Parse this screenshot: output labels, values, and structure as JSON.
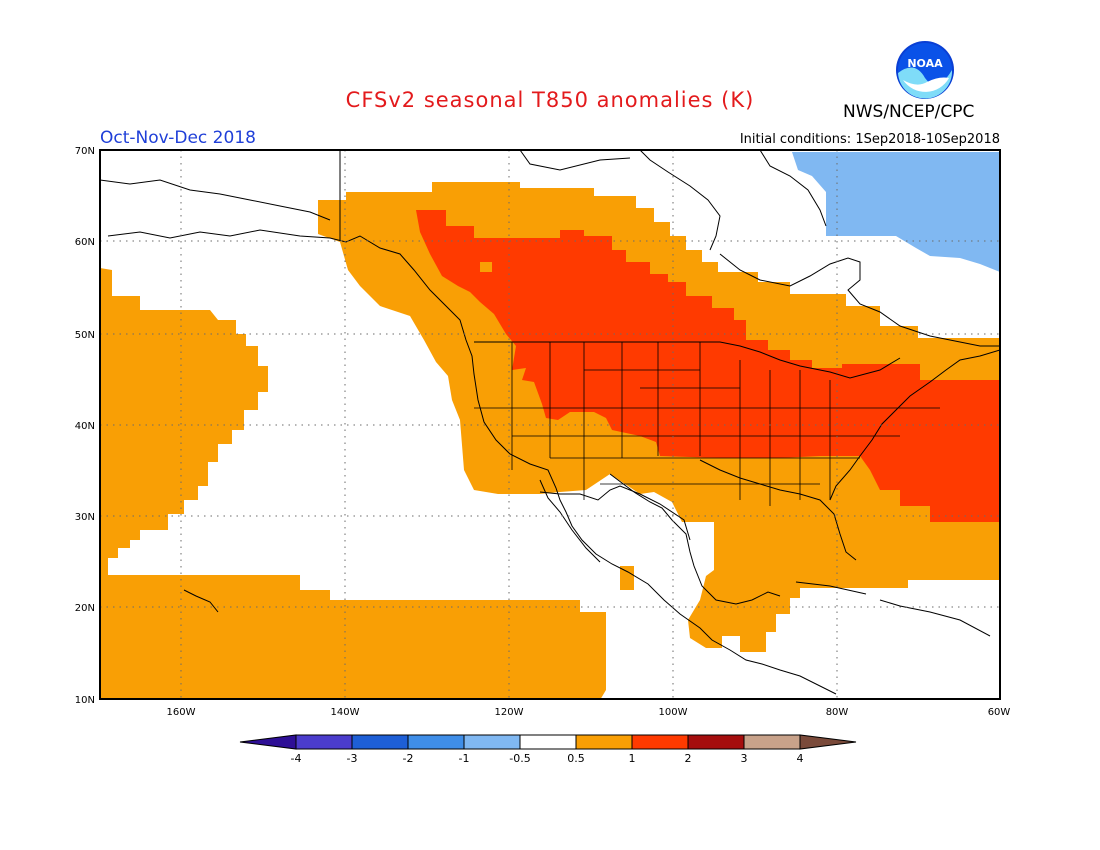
{
  "title": "CFSv2 seasonal T850 anomalies (K)",
  "organization": "NWS/NCEP/CPC",
  "logo_text": "NOAA",
  "period": "Oct-Nov-Dec 2018",
  "initial_conditions": "Initial conditions: 1Sep2018-10Sep2018",
  "map": {
    "lat_labels": [
      "70N",
      "60N",
      "50N",
      "40N",
      "30N",
      "20N",
      "10N"
    ],
    "lon_labels": [
      "160W",
      "140W",
      "120W",
      "100W",
      "80W",
      "60W"
    ],
    "gridlines": "dotted"
  },
  "colorbar": {
    "labels": [
      "-4",
      "-3",
      "-2",
      "-1",
      "-0.5",
      "0.5",
      "1",
      "2",
      "3",
      "4"
    ],
    "colors": [
      "#2e0f96",
      "#4b3ccc",
      "#1e5fd6",
      "#3f8ee8",
      "#80b8f2",
      "#ffffff",
      "#f99f05",
      "#ff3a00",
      "#a50d0d",
      "#c8a28a",
      "#7a4a3a"
    ]
  },
  "anomaly_colors": {
    "weak_warm": "#f99f05",
    "moderate_warm": "#ff3a00",
    "weak_cold": "#80b8f2"
  }
}
